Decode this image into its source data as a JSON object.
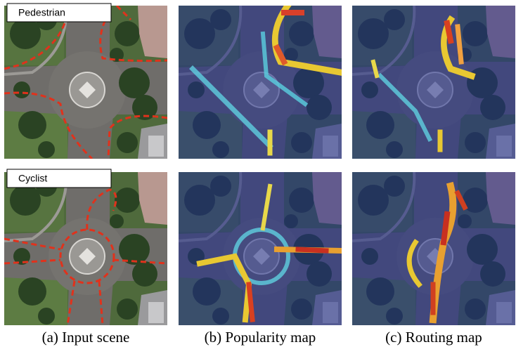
{
  "panels": {
    "rows": [
      {
        "label": "Pedestrian"
      },
      {
        "label": "Cyclist"
      }
    ]
  },
  "captions": [
    "(a) Input scene",
    "(b) Popularity map",
    "(c) Routing map"
  ]
}
